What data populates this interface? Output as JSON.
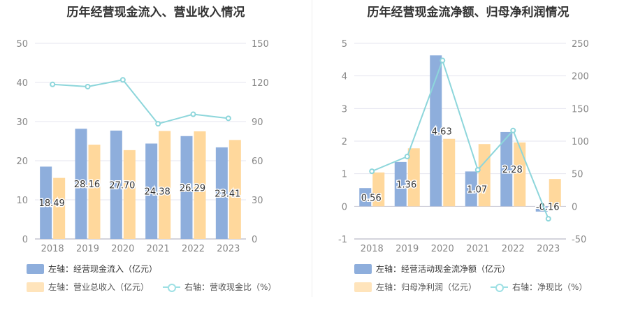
{
  "colors": {
    "cash_bar": "#8eaedc",
    "revenue_bar": "#ffd89c",
    "ratio_line": "#8dd6db",
    "grid": "#e4e4ef",
    "axis_text": "#888888"
  },
  "legend_left": {
    "item1": "左轴：经营现金流入（亿元）",
    "item2": "左轴：营业总收入（亿元）",
    "item3": "右轴：营收现金比（%）"
  },
  "legend_right": {
    "item1": "左轴：经营活动现金流净额（亿元）",
    "item2": "左轴：归母净利润（亿元）",
    "item3": "右轴：净现比（%）"
  },
  "chart_data": [
    {
      "type": "bar",
      "title": "历年经营现金流入、营业收入情况",
      "categories": [
        "2018",
        "2019",
        "2020",
        "2021",
        "2022",
        "2023"
      ],
      "left_axis": {
        "ticks": [
          "0",
          "10",
          "20",
          "30",
          "40",
          "50"
        ],
        "ylim": [
          0,
          50
        ]
      },
      "right_axis": {
        "ticks": [
          "0",
          "30",
          "60",
          "90",
          "120",
          "150"
        ],
        "ylim": [
          0,
          150
        ]
      },
      "series": [
        {
          "name": "左轴：经营现金流入（亿元）",
          "kind": "bar",
          "axis": "left",
          "values": [
            18.49,
            28.16,
            27.7,
            24.38,
            26.29,
            23.41
          ],
          "labels": [
            "18.49",
            "28.16",
            "27.70",
            "24.38",
            "26.29",
            "23.41"
          ]
        },
        {
          "name": "左轴：营业总收入（亿元）",
          "kind": "bar",
          "axis": "left",
          "values": [
            15.6,
            24.1,
            22.7,
            27.6,
            27.5,
            25.3
          ]
        },
        {
          "name": "右轴：营收现金比（%）",
          "kind": "line",
          "axis": "right",
          "values": [
            118.5,
            116.8,
            122.0,
            88.3,
            95.6,
            92.5
          ]
        }
      ],
      "grid": true
    },
    {
      "type": "bar",
      "title": "历年经营现金流净额、归母净利润情况",
      "categories": [
        "2018",
        "2019",
        "2020",
        "2021",
        "2022",
        "2023"
      ],
      "left_axis": {
        "ticks": [
          "-1",
          "0",
          "1",
          "2",
          "3",
          "4",
          "5"
        ],
        "ylim": [
          -1,
          5
        ]
      },
      "right_axis": {
        "ticks": [
          "-50",
          "0",
          "50",
          "100",
          "150",
          "200",
          "250"
        ],
        "ylim": [
          -50,
          250
        ]
      },
      "series": [
        {
          "name": "左轴：经营活动现金流净额（亿元）",
          "kind": "bar",
          "axis": "left",
          "values": [
            0.56,
            1.36,
            4.63,
            1.07,
            2.28,
            -0.16
          ],
          "labels": [
            "0.56",
            "1.36",
            "4.63",
            "1.07",
            "2.28",
            "-0.16"
          ]
        },
        {
          "name": "左轴：归母净利润（亿元）",
          "kind": "bar",
          "axis": "left",
          "values": [
            1.04,
            1.78,
            2.07,
            1.91,
            1.96,
            0.84
          ]
        },
        {
          "name": "右轴：净现比（%）",
          "kind": "line",
          "axis": "right",
          "values": [
            53.8,
            76.4,
            223.7,
            56.0,
            116.3,
            -19.0
          ]
        }
      ],
      "grid": true
    }
  ]
}
